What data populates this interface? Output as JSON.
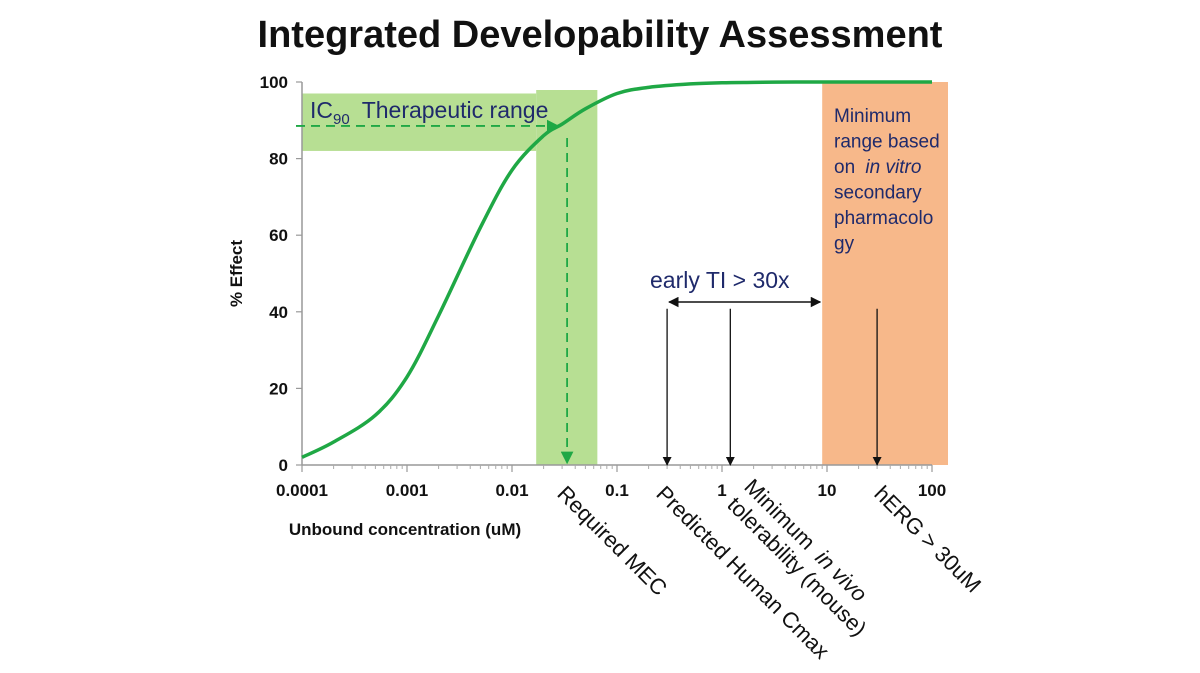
{
  "chart_data": {
    "type": "line",
    "title": "Integrated Developability Assessment",
    "xlabel": "Unbound concentration (uM)",
    "ylabel": "% Effect",
    "x_scale": "log",
    "xlim": [
      0.0001,
      100
    ],
    "ylim": [
      0,
      100
    ],
    "x_ticks": [
      "0.0001",
      "0.001",
      "0.01",
      "0.1",
      "1",
      "10",
      "100"
    ],
    "y_ticks": [
      "0",
      "20",
      "40",
      "60",
      "80",
      "100"
    ],
    "series": [
      {
        "color": "#1fa845",
        "x": [
          0.0001,
          0.0002,
          0.0005,
          0.001,
          0.002,
          0.005,
          0.01,
          0.02,
          0.03,
          0.05,
          0.1,
          0.2,
          0.5,
          1,
          2,
          5,
          10
        ],
        "y": [
          2,
          6,
          13,
          23,
          39,
          62,
          77,
          86,
          89,
          93,
          97,
          98.6,
          99.5,
          99.8,
          99.9,
          100,
          100
        ]
      }
    ],
    "regions": {
      "green_band_x": [
        0.017,
        0.065
      ],
      "green_band_y": [
        82,
        97
      ],
      "orange_band_x": [
        9,
        140
      ]
    },
    "ic90": {
      "sub": "90",
      "base": "IC",
      "label": "Therapeutic range",
      "x": 0.03,
      "y": 88
    },
    "ti": {
      "label": "early TI > 30x",
      "from": 0.3,
      "to": 9
    },
    "orange_text": {
      "lines": [
        "Minimum",
        "range based",
        "secondary",
        "pharmacolo",
        "gy"
      ],
      "on_prefix": "on ",
      "in_vitro": "in vitro"
    },
    "markers": [
      {
        "x": 0.3,
        "top": 40,
        "label": "Predicted Human Cmax"
      },
      {
        "x": 1.2,
        "top": 40,
        "label_line1_prefix": "Minimum ",
        "label_line1_italic": "in vivo",
        "label_line2": "tolerability (mouse)"
      },
      {
        "x": 30,
        "top": 40,
        "label": "hERG > 30uM"
      }
    ],
    "required_mec": {
      "label": "Required MEC"
    },
    "colors": {
      "curve": "#1fa845",
      "green_band": "#b7df93",
      "orange_band": "#f7b88a",
      "annotation_blue": "#1f2a6b"
    }
  }
}
